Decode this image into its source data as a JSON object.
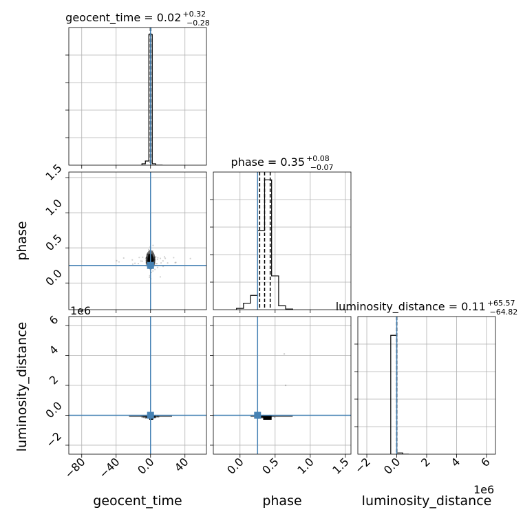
{
  "figure": {
    "type": "corner_plot",
    "truth_color": "#4682b4"
  },
  "chart_data": [
    {
      "panel": "geocent_time-hist",
      "type": "histogram",
      "title_text": "geocent_time = 0.02",
      "title_sup": "+0.32",
      "title_sub": "−0.28",
      "xlim": [
        -95,
        65
      ],
      "xticks": [
        -80,
        -40,
        0,
        40
      ],
      "bins": [
        -10,
        -6,
        -2,
        2,
        6,
        10,
        14
      ],
      "values": [
        0.01,
        0.03,
        0.95,
        0.01,
        0.0,
        0.0
      ],
      "ylim": [
        0,
        1.0
      ],
      "quantiles": [
        -0.26,
        0.02,
        0.34
      ],
      "truth": 0.0
    },
    {
      "panel": "phase-vs-geocent_time",
      "type": "scatter-density",
      "xlim": [
        -95,
        65
      ],
      "ylim": [
        -0.38,
        1.58
      ],
      "yticks": [
        0.0,
        0.5,
        1.0,
        1.5
      ],
      "ylabel": "phase",
      "center": [
        0,
        0.3
      ],
      "truth": [
        0.0,
        0.25
      ]
    },
    {
      "panel": "phase-hist",
      "type": "histogram",
      "title_text": "phase = 0.35",
      "title_sup": "+0.08",
      "title_sub": "−0.07",
      "xlim": [
        -0.38,
        1.58
      ],
      "bins": [
        -0.05,
        0.05,
        0.15,
        0.25,
        0.35,
        0.45,
        0.55,
        0.65,
        0.75
      ],
      "values": [
        0.01,
        0.05,
        0.11,
        0.61,
        1.0,
        0.26,
        0.03,
        0.005
      ],
      "ylim": [
        0,
        1.06
      ],
      "quantiles": [
        0.28,
        0.35,
        0.43
      ],
      "truth": 0.25
    },
    {
      "panel": "luminosity_distance-vs-geocent_time",
      "type": "scatter-density",
      "xlim": [
        -95,
        65
      ],
      "ylim": [
        -2.6,
        6.6
      ],
      "yticks": [
        -2,
        0,
        2,
        4,
        6
      ],
      "ylabel": "luminosity_distance",
      "y_offset": "1e6",
      "xlabel": "geocent_time",
      "truth": [
        0.0,
        0.0
      ]
    },
    {
      "panel": "luminosity_distance-vs-phase",
      "type": "scatter-density",
      "xlim": [
        -0.38,
        1.58
      ],
      "ylim": [
        -2.6,
        6.6
      ],
      "xticks": [
        0.0,
        0.5,
        1.0,
        1.5
      ],
      "xlabel": "phase",
      "truth": [
        0.25,
        0.0
      ]
    },
    {
      "panel": "luminosity_distance-hist",
      "type": "histogram",
      "title_text": "luminosity_distance = 0.11",
      "title_sup": "+65.57",
      "title_sub": "−64.82",
      "xlim": [
        -2.6,
        6.6
      ],
      "xticks": [
        -2,
        0,
        2,
        4,
        6
      ],
      "x_offset": "1e6",
      "xlabel": "luminosity_distance",
      "bins": [
        -0.4,
        0.0,
        0.4,
        0.8
      ],
      "values": [
        0.95,
        0.01,
        0.0
      ],
      "ylim": [
        0,
        1.1
      ],
      "quantiles": [
        -0.0001,
        0.0,
        0.0001
      ],
      "truth": 0.0
    }
  ]
}
